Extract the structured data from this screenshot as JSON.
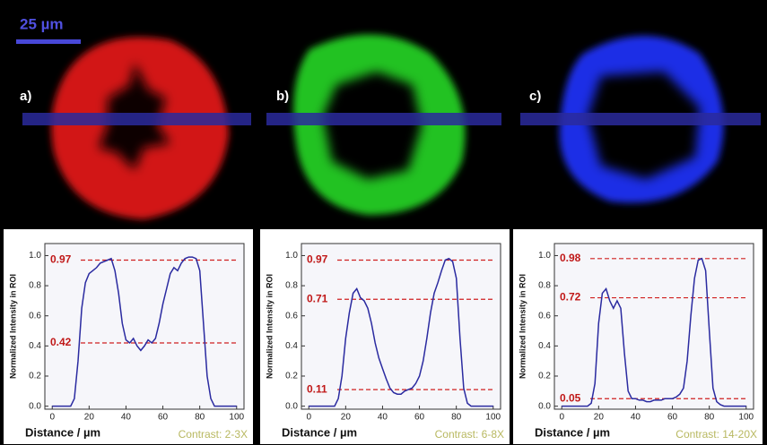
{
  "scale_bar": "25 µm",
  "chart_data": [
    {
      "type": "line",
      "panel_label": "a)",
      "x_label": "Distance / µm",
      "y_label": "Normalized Intensity in ROI",
      "contrast": "Contrast: 2-3X",
      "color": "#2a2aa0",
      "x": [
        0,
        2,
        4,
        6,
        8,
        10,
        12,
        14,
        16,
        18,
        20,
        22,
        24,
        26,
        28,
        30,
        32,
        34,
        36,
        38,
        40,
        42,
        44,
        46,
        48,
        50,
        52,
        54,
        56,
        58,
        60,
        62,
        64,
        66,
        68,
        70,
        72,
        74,
        76,
        78,
        80,
        82,
        84,
        86,
        88,
        90,
        92,
        94,
        96,
        98,
        100
      ],
      "values": [
        0,
        0,
        0,
        0,
        0,
        0,
        0.05,
        0.3,
        0.65,
        0.82,
        0.88,
        0.9,
        0.92,
        0.95,
        0.96,
        0.97,
        0.98,
        0.9,
        0.75,
        0.55,
        0.44,
        0.42,
        0.45,
        0.4,
        0.37,
        0.4,
        0.44,
        0.42,
        0.45,
        0.55,
        0.68,
        0.78,
        0.88,
        0.92,
        0.9,
        0.95,
        0.98,
        0.99,
        0.99,
        0.98,
        0.9,
        0.55,
        0.2,
        0.05,
        0,
        0,
        0,
        0,
        0,
        0,
        0
      ],
      "annotations": [
        0.97,
        0.42
      ],
      "xlim": [
        -4,
        104
      ],
      "ylim": [
        -0.02,
        1.08
      ],
      "xticks": [
        0,
        20,
        40,
        60,
        80,
        100
      ],
      "yticks": [
        {
          "value": 0,
          "label": "0.0"
        },
        0.2,
        0.4,
        0.6,
        0.8,
        {
          "value": 1,
          "label": "1.0"
        }
      ]
    },
    {
      "type": "line",
      "panel_label": "b)",
      "x_label": "Distance / µm",
      "y_label": "Normalized Intensity in ROI",
      "contrast": "Contrast: 6-8X",
      "color": "#2a2aa0",
      "x": [
        0,
        2,
        4,
        6,
        8,
        10,
        12,
        14,
        16,
        18,
        20,
        22,
        24,
        26,
        28,
        30,
        32,
        34,
        36,
        38,
        40,
        42,
        44,
        46,
        48,
        50,
        52,
        54,
        56,
        58,
        60,
        62,
        64,
        66,
        68,
        70,
        72,
        74,
        76,
        78,
        80,
        82,
        84,
        86,
        88,
        90,
        92,
        94,
        96,
        98,
        100
      ],
      "values": [
        0,
        0,
        0,
        0,
        0,
        0,
        0,
        0,
        0.05,
        0.2,
        0.45,
        0.62,
        0.75,
        0.78,
        0.72,
        0.7,
        0.65,
        0.55,
        0.42,
        0.32,
        0.25,
        0.18,
        0.12,
        0.09,
        0.08,
        0.08,
        0.1,
        0.11,
        0.12,
        0.15,
        0.2,
        0.3,
        0.45,
        0.62,
        0.75,
        0.82,
        0.9,
        0.97,
        0.98,
        0.96,
        0.85,
        0.45,
        0.12,
        0.02,
        0,
        0,
        0,
        0,
        0,
        0,
        0
      ],
      "annotations": [
        0.97,
        0.71,
        0.11
      ],
      "xlim": [
        -4,
        104
      ],
      "ylim": [
        -0.02,
        1.08
      ],
      "xticks": [
        0,
        20,
        40,
        60,
        80,
        100
      ],
      "yticks": [
        {
          "value": 0,
          "label": "0.0"
        },
        0.2,
        0.4,
        0.6,
        0.8,
        {
          "value": 1,
          "label": "1.0"
        }
      ]
    },
    {
      "type": "line",
      "panel_label": "c)",
      "x_label": "Distance / µm",
      "y_label": "Normalized Intensity in ROI",
      "contrast": "Contrast: 14-20X",
      "color": "#2a2aa0",
      "x": [
        0,
        2,
        4,
        6,
        8,
        10,
        12,
        14,
        16,
        18,
        20,
        22,
        24,
        26,
        28,
        30,
        32,
        34,
        36,
        38,
        40,
        42,
        44,
        46,
        48,
        50,
        52,
        54,
        56,
        58,
        60,
        62,
        64,
        66,
        68,
        70,
        72,
        74,
        76,
        78,
        80,
        82,
        84,
        86,
        88,
        90,
        92,
        94,
        96,
        98,
        100
      ],
      "values": [
        0,
        0,
        0,
        0,
        0,
        0,
        0,
        0,
        0.02,
        0.15,
        0.55,
        0.75,
        0.78,
        0.7,
        0.65,
        0.7,
        0.65,
        0.35,
        0.1,
        0.05,
        0.05,
        0.04,
        0.04,
        0.03,
        0.03,
        0.04,
        0.04,
        0.04,
        0.05,
        0.05,
        0.05,
        0.06,
        0.08,
        0.12,
        0.3,
        0.6,
        0.85,
        0.97,
        0.98,
        0.9,
        0.5,
        0.12,
        0.03,
        0.01,
        0,
        0,
        0,
        0,
        0,
        0,
        0
      ],
      "annotations": [
        0.98,
        0.72,
        0.05
      ],
      "xlim": [
        -4,
        104
      ],
      "ylim": [
        -0.02,
        1.08
      ],
      "xticks": [
        0,
        20,
        40,
        60,
        80,
        100
      ],
      "yticks": [
        {
          "value": 0,
          "label": "0.0"
        },
        0.2,
        0.4,
        0.6,
        0.8,
        {
          "value": 1,
          "label": "1.0"
        }
      ]
    }
  ]
}
